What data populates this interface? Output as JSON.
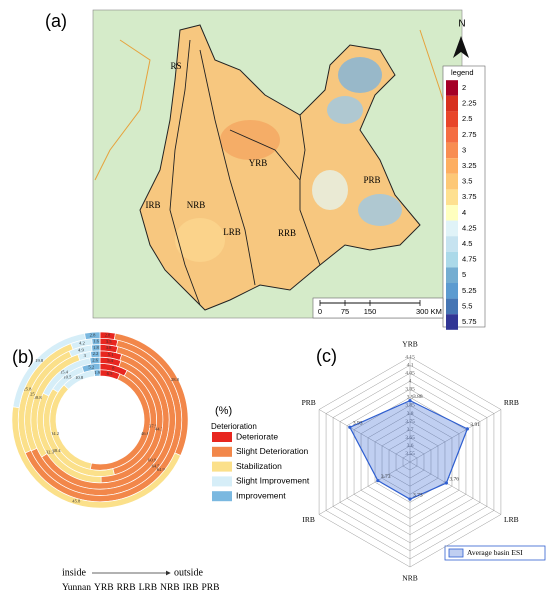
{
  "map": {
    "panel_label": "(a)",
    "north": "N",
    "regions": [
      "RS",
      "YRB",
      "IRB",
      "NRB",
      "LRB",
      "RRB",
      "PRB"
    ],
    "legend": {
      "title": "legend",
      "items": [
        {
          "value": 2,
          "color": "#a50026"
        },
        {
          "value": 2.25,
          "color": "#d7301f"
        },
        {
          "value": 2.5,
          "color": "#e8452a"
        },
        {
          "value": 2.75,
          "color": "#f46d43"
        },
        {
          "value": 3,
          "color": "#f88d52"
        },
        {
          "value": 3.25,
          "color": "#fdae61"
        },
        {
          "value": 3.5,
          "color": "#fdc877"
        },
        {
          "value": 3.75,
          "color": "#fee090"
        },
        {
          "value": 4,
          "color": "#ffffbf"
        },
        {
          "value": 4.25,
          "color": "#e0f3f8"
        },
        {
          "value": 4.5,
          "color": "#c6e3f0"
        },
        {
          "value": 4.75,
          "color": "#abd9e9"
        },
        {
          "value": 5,
          "color": "#74add1"
        },
        {
          "value": 5.25,
          "color": "#5c9bd0"
        },
        {
          "value": 5.5,
          "color": "#4575b4"
        },
        {
          "value": 5.75,
          "color": "#313695"
        }
      ]
    },
    "scale": [
      0,
      75,
      150,
      {
        "value": 300,
        "label": "300 KM"
      }
    ]
  },
  "chart_data": [
    {
      "type": "donut",
      "panel_label": "(b)",
      "legend_unit": "(%)",
      "legend_title": "Deterioration",
      "categories": [
        "Deteriorate",
        "Slight Deterioration",
        "Stabilization",
        "Slight Improvement",
        "Improvement"
      ],
      "colors": [
        "#e8261f",
        "#f2874a",
        "#fbe08a",
        "#d6eef8",
        "#7ab8e0"
      ],
      "series": [
        {
          "name": "Yunnan",
          "values": [
            6.5,
            46.6,
            34.2,
            10.8,
            1.9
          ]
        },
        {
          "name": "YRB",
          "values": [
            8,
            37.9,
            38.4,
            10.5,
            5.2
          ]
        },
        {
          "name": "RRB",
          "values": [
            5.4,
            44.3,
            32.3,
            15.4,
            2.6
          ]
        },
        {
          "name": "LRB",
          "values": [
            5.1,
            60.9,
            28.8,
            3,
            2.2
          ]
        },
        {
          "name": "NRB",
          "values": [
            3.8,
            64.5,
            25,
            4.9,
            1.8
          ]
        },
        {
          "name": "IRB",
          "values": [
            3.5,
            64.9,
            25.8,
            4.2,
            1.6
          ]
        },
        {
          "name": "PRB",
          "values": [
            2.8,
            28.8,
            45.8,
            19.8,
            2.8
          ]
        }
      ],
      "direction_labels": [
        "inside",
        "outside"
      ]
    },
    {
      "type": "radar",
      "panel_label": "(c)",
      "categories": [
        "YRB",
        "RRB",
        "LRB",
        "NRB",
        "IRB",
        "PRB"
      ],
      "series": [
        {
          "name": "Average basin ESI",
          "color": "#2f5fd0",
          "values": [
            3.88,
            3.91,
            3.76,
            3.73,
            3.73,
            3.93
          ]
        }
      ],
      "ylim": [
        3.5,
        4.15
      ],
      "yticks": [
        3.55,
        3.6,
        3.65,
        3.7,
        3.75,
        3.8,
        3.85,
        3.9,
        3.95,
        4,
        4.05,
        4.1,
        4.15
      ]
    }
  ]
}
